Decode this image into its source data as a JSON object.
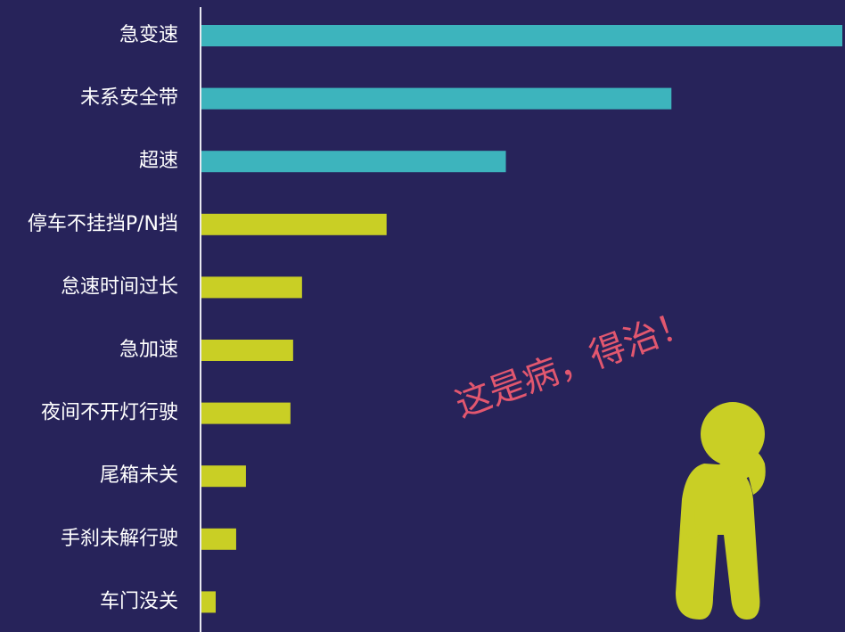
{
  "chart_data": {
    "type": "bar",
    "orientation": "horizontal",
    "categories": [
      "急变速",
      "未系安全带",
      "超速",
      "停车不挂挡P/N挡",
      "怠速时间过长",
      "急加速",
      "夜间不开灯行驶",
      "尾箱未关",
      "手刹未解行驶",
      "车门没关"
    ],
    "values": [
      720,
      528,
      342,
      208,
      113,
      103,
      100,
      50,
      39,
      16
    ],
    "colors": [
      "#3db4bd",
      "#3db4bd",
      "#3db4bd",
      "#c9cf25",
      "#c9cf25",
      "#c9cf25",
      "#c9cf25",
      "#c9cf25",
      "#c9cf25",
      "#c9cf25"
    ],
    "xlim": [
      0,
      720
    ],
    "annotation": "这是病，得治！"
  }
}
